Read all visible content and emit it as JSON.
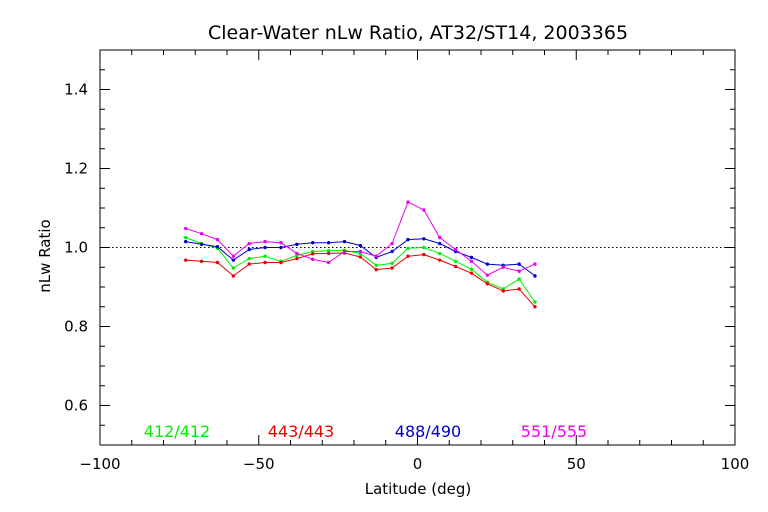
{
  "chart_data": {
    "type": "line",
    "title": "Clear-Water nLw Ratio, AT32/ST14, 2003365",
    "xlabel": "Latitude (deg)",
    "ylabel": "nLw Ratio",
    "xlim": [
      -100,
      100
    ],
    "ylim": [
      0.5,
      1.5
    ],
    "xticks": [
      -100,
      -50,
      0,
      50,
      100
    ],
    "xtick_labels": [
      "−100",
      "−50",
      "0",
      "50",
      "100"
    ],
    "yticks": [
      0.6,
      0.8,
      1.0,
      1.2,
      1.4
    ],
    "ytick_labels": [
      "0.6",
      "0.8",
      "1.0",
      "1.2",
      "1.4"
    ],
    "reference_line": 1.0,
    "grid": false,
    "legend_placement": "bottom",
    "x": [
      -73,
      -68,
      -63,
      -58,
      -53,
      -48,
      -43,
      -38,
      -33,
      -28,
      -23,
      -18,
      -13,
      -8,
      -3,
      2,
      7,
      12,
      17,
      22,
      27,
      32,
      37
    ],
    "series": [
      {
        "name": "412/412",
        "color": "#00ee00",
        "values": [
          1.025,
          1.01,
          0.998,
          0.948,
          0.972,
          0.978,
          0.965,
          0.98,
          0.99,
          0.992,
          0.993,
          0.985,
          0.955,
          0.96,
          0.998,
          1.0,
          0.985,
          0.965,
          0.945,
          0.912,
          0.895,
          0.92,
          0.862
        ]
      },
      {
        "name": "443/443",
        "color": "#ee0000",
        "values": [
          0.968,
          0.965,
          0.962,
          0.928,
          0.958,
          0.962,
          0.962,
          0.972,
          0.984,
          0.985,
          0.986,
          0.976,
          0.944,
          0.948,
          0.978,
          0.982,
          0.968,
          0.952,
          0.935,
          0.908,
          0.89,
          0.895,
          0.85
        ]
      },
      {
        "name": "488/490",
        "color": "#0000cc",
        "values": [
          1.015,
          1.008,
          1.002,
          0.968,
          0.995,
          1.0,
          1.0,
          1.008,
          1.012,
          1.012,
          1.015,
          1.005,
          0.975,
          0.99,
          1.02,
          1.022,
          1.01,
          0.99,
          0.975,
          0.958,
          0.955,
          0.958,
          0.928
        ]
      },
      {
        "name": "551/555",
        "color": "#ee00ee",
        "values": [
          1.048,
          1.035,
          1.02,
          0.978,
          1.01,
          1.015,
          1.012,
          0.985,
          0.97,
          0.962,
          0.99,
          0.99,
          0.978,
          1.01,
          1.115,
          1.095,
          1.025,
          0.995,
          0.965,
          0.93,
          0.95,
          0.94,
          0.958
        ]
      }
    ]
  }
}
